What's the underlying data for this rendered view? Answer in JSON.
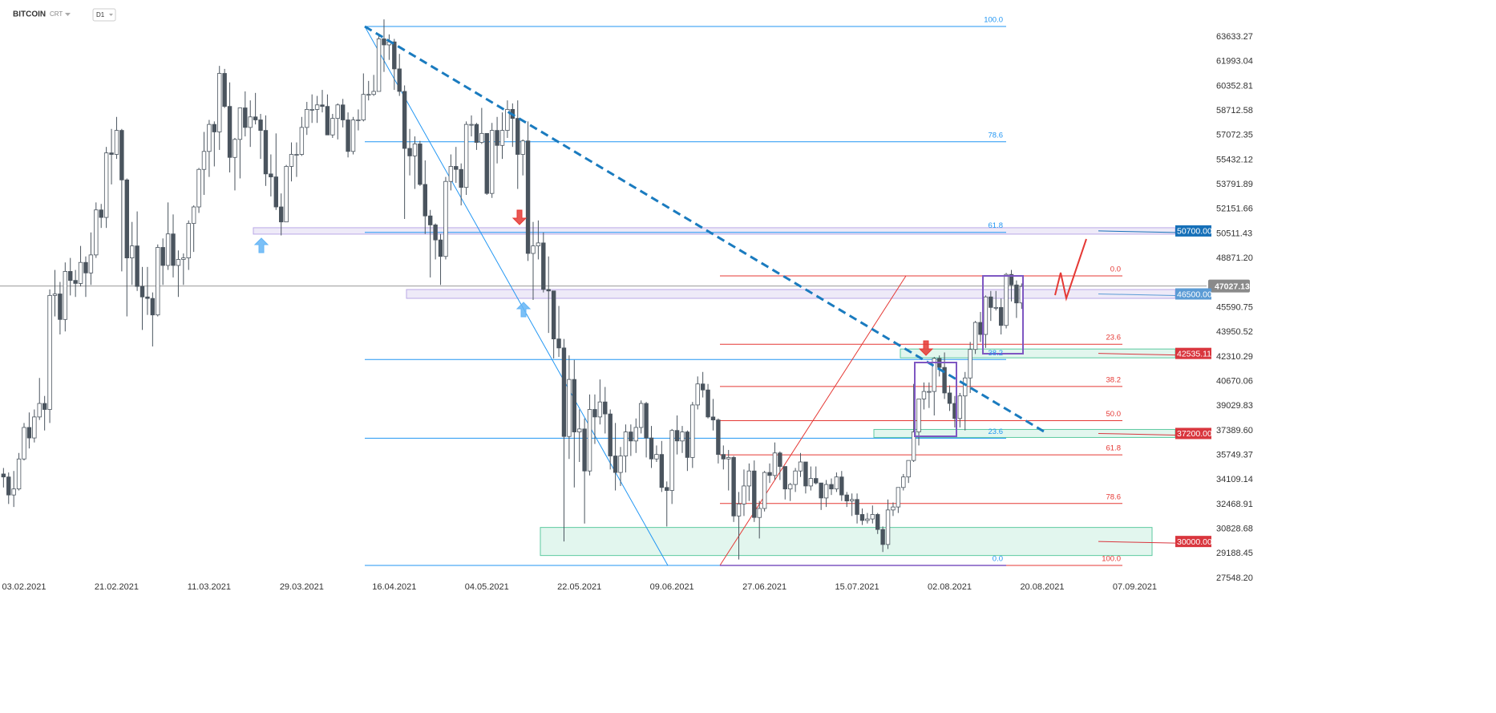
{
  "header": {
    "title": "BITCOIN",
    "subtitle": "CRT",
    "timeframe": "D1"
  },
  "chart_data": {
    "type": "candlestick",
    "xticks": [
      "03.02.2021",
      "21.02.2021",
      "11.03.2021",
      "29.03.2021",
      "16.04.2021",
      "04.05.2021",
      "22.05.2021",
      "09.06.2021",
      "27.06.2021",
      "15.07.2021",
      "02.08.2021",
      "20.08.2021",
      "07.09.2021"
    ],
    "ylim": [
      27548.2,
      63633.27
    ],
    "yticks": [
      63633.27,
      61993.04,
      60352.81,
      58712.58,
      57072.35,
      55432.12,
      53791.89,
      52151.66,
      50511.43,
      {
        "value": 48871.2,
        "label": "48871.20"
      },
      45590.75,
      43950.52,
      42310.29,
      40670.06,
      39029.83,
      {
        "value": 37389.6,
        "label": "37389.60"
      },
      35749.37,
      34109.14,
      32468.91,
      30828.68,
      29188.45,
      {
        "value": 27548.2,
        "label": "27548.20"
      }
    ],
    "price": {
      "value": 47027.13,
      "label": "47027.13"
    },
    "levels": [
      {
        "value": 50700,
        "label": "50700.00",
        "color": "#1670b8"
      },
      {
        "value": 46500,
        "label": "46500.00",
        "color": "#5b9bd5"
      },
      {
        "value": 42535.11,
        "label": "42535.11",
        "color": "#d9363e"
      },
      {
        "value": 37200,
        "label": "37200.00",
        "color": "#d9363e"
      },
      {
        "value": 30000,
        "label": "30000.00",
        "color": "#d9363e"
      }
    ],
    "fib_blue": {
      "color": "#2196f3",
      "levels": [
        {
          "value": 100,
          "label": "100.0"
        },
        {
          "value": 78.6,
          "label": "78.6"
        },
        {
          "value": 61.8,
          "label": "61.8"
        },
        {
          "value": 38.2,
          "label": "38.2"
        },
        {
          "value": 23.6,
          "label": "23.6"
        },
        {
          "value": 0,
          "label": "0.0"
        }
      ]
    },
    "fib_red": {
      "color": "#e53935",
      "levels": [
        {
          "value": 0,
          "label": "0.0"
        },
        {
          "value": 23.6,
          "label": "23.6"
        },
        {
          "value": 38.2,
          "label": "38.2"
        },
        {
          "value": 50,
          "label": "50.0"
        },
        {
          "value": 61.8,
          "label": "61.8"
        },
        {
          "value": 78.6,
          "label": "78.6"
        },
        {
          "value": 100,
          "label": "100.0"
        }
      ]
    },
    "candles": [
      [
        34500,
        34900,
        33600,
        34300
      ],
      [
        34300,
        34600,
        32500,
        33100
      ],
      [
        33100,
        34700,
        32300,
        33500
      ],
      [
        33500,
        35900,
        33400,
        35500
      ],
      [
        35500,
        37900,
        35400,
        37600
      ],
      [
        37600,
        38600,
        36200,
        36900
      ],
      [
        36900,
        38800,
        36600,
        38300
      ],
      [
        38300,
        40900,
        38100,
        39200
      ],
      [
        39200,
        39700,
        37400,
        38800
      ],
      [
        38800,
        46800,
        37900,
        46400
      ],
      [
        46400,
        48100,
        45000,
        46500
      ],
      [
        46500,
        47300,
        43800,
        44800
      ],
      [
        44800,
        48600,
        44000,
        48000
      ],
      [
        48000,
        48900,
        46400,
        47400
      ],
      [
        47400,
        48100,
        46300,
        47200
      ],
      [
        47200,
        49700,
        47000,
        48600
      ],
      [
        48600,
        49000,
        46300,
        47900
      ],
      [
        47900,
        50600,
        47100,
        49100
      ],
      [
        49100,
        52600,
        48900,
        52100
      ],
      [
        52100,
        52500,
        50900,
        51600
      ],
      [
        51600,
        56300,
        50900,
        55900
      ],
      [
        55900,
        57500,
        53800,
        55800
      ],
      [
        55800,
        58300,
        55500,
        57400
      ],
      [
        57400,
        57500,
        48000,
        54100
      ],
      [
        54100,
        54200,
        45000,
        48900
      ],
      [
        48900,
        51300,
        47100,
        49700
      ],
      [
        49700,
        52000,
        46700,
        47000
      ],
      [
        47000,
        48300,
        44100,
        46300
      ],
      [
        46300,
        48300,
        45100,
        46200
      ],
      [
        46200,
        46600,
        43000,
        45100
      ],
      [
        45100,
        49800,
        45000,
        49600
      ],
      [
        49600,
        50200,
        47100,
        48400
      ],
      [
        48400,
        52600,
        48100,
        50500
      ],
      [
        50500,
        51800,
        47600,
        48400
      ],
      [
        48400,
        49400,
        46300,
        48800
      ],
      [
        48800,
        49200,
        47100,
        48900
      ],
      [
        48900,
        51400,
        48100,
        51200
      ],
      [
        51200,
        52400,
        49300,
        52300
      ],
      [
        52300,
        54900,
        51900,
        54800
      ],
      [
        54800,
        57300,
        53100,
        56000
      ],
      [
        56000,
        58100,
        54300,
        57800
      ],
      [
        57800,
        58000,
        55000,
        57300
      ],
      [
        57300,
        61700,
        56100,
        61200
      ],
      [
        61200,
        61500,
        58900,
        59000
      ],
      [
        59000,
        60600,
        54600,
        55600
      ],
      [
        55600,
        56900,
        53400,
        56800
      ],
      [
        56800,
        58900,
        54200,
        58900
      ],
      [
        58900,
        60000,
        57000,
        57600
      ],
      [
        57600,
        59400,
        56300,
        58300
      ],
      [
        58300,
        59900,
        57800,
        58100
      ],
      [
        58100,
        58500,
        55500,
        57400
      ],
      [
        57400,
        58400,
        53700,
        54500
      ],
      [
        54500,
        55800,
        53000,
        54300
      ],
      [
        54300,
        57200,
        52100,
        52300
      ],
      [
        52300,
        53200,
        50400,
        51300
      ],
      [
        51300,
        55100,
        51300,
        55000
      ],
      [
        55000,
        56600,
        54000,
        55800
      ],
      [
        55800,
        56600,
        54300,
        55800
      ],
      [
        55800,
        58300,
        55700,
        57600
      ],
      [
        57600,
        59300,
        57100,
        58800
      ],
      [
        58800,
        59800,
        57900,
        58800
      ],
      [
        58800,
        59700,
        57900,
        59100
      ],
      [
        59100,
        60100,
        58600,
        59000
      ],
      [
        59000,
        59800,
        57100,
        57100
      ],
      [
        57100,
        58500,
        56900,
        58200
      ],
      [
        58200,
        59200,
        56800,
        59100
      ],
      [
        59100,
        59500,
        57600,
        58100
      ],
      [
        58100,
        58600,
        55600,
        56000
      ],
      [
        56000,
        58300,
        55800,
        58100
      ],
      [
        58100,
        58800,
        57400,
        58100
      ],
      [
        58100,
        61200,
        58000,
        59800
      ],
      [
        59800,
        60700,
        59400,
        59800
      ],
      [
        59800,
        61100,
        59700,
        60000
      ],
      [
        60000,
        63700,
        60000,
        63500
      ],
      [
        63500,
        64800,
        61300,
        63100
      ],
      [
        63100,
        63800,
        62100,
        63300
      ],
      [
        63300,
        63500,
        60100,
        61500
      ],
      [
        61500,
        62500,
        59700,
        60000
      ],
      [
        60000,
        60400,
        51500,
        56200
      ],
      [
        56200,
        57500,
        54400,
        55700
      ],
      [
        55700,
        57000,
        53500,
        56500
      ],
      [
        56500,
        56700,
        53700,
        53800
      ],
      [
        53800,
        55400,
        50500,
        51700
      ],
      [
        51700,
        52100,
        47600,
        51100
      ],
      [
        51100,
        51200,
        48800,
        50100
      ],
      [
        50100,
        50500,
        47100,
        49000
      ],
      [
        49000,
        54300,
        48800,
        54000
      ],
      [
        54000,
        55800,
        53400,
        55000
      ],
      [
        55000,
        56300,
        53900,
        54800
      ],
      [
        54800,
        55200,
        52400,
        53600
      ],
      [
        53600,
        58000,
        53100,
        57800
      ],
      [
        57800,
        58400,
        57000,
        57800
      ],
      [
        57800,
        57900,
        56100,
        56600
      ],
      [
        56600,
        58900,
        56500,
        57200
      ],
      [
        57200,
        57200,
        53100,
        53200
      ],
      [
        53200,
        57900,
        52900,
        57400
      ],
      [
        57400,
        58300,
        55200,
        56400
      ],
      [
        56400,
        58600,
        55500,
        57400
      ],
      [
        57400,
        59400,
        56900,
        58800
      ],
      [
        58800,
        59200,
        56300,
        58200
      ],
      [
        58200,
        59400,
        53500,
        55800
      ],
      [
        55800,
        56800,
        54400,
        56700
      ],
      [
        56700,
        58000,
        48700,
        49200
      ],
      [
        49200,
        51300,
        46100,
        49700
      ],
      [
        49700,
        51400,
        48800,
        49900
      ],
      [
        49900,
        50600,
        46600,
        46800
      ],
      [
        46800,
        49000,
        43900,
        46700
      ],
      [
        46700,
        46700,
        42200,
        43500
      ],
      [
        43500,
        45700,
        42300,
        42900
      ],
      [
        42900,
        43500,
        30000,
        37000
      ],
      [
        37000,
        42400,
        35500,
        40800
      ],
      [
        40800,
        42100,
        33600,
        37300
      ],
      [
        37300,
        38800,
        35300,
        37500
      ],
      [
        37500,
        38200,
        31200,
        34700
      ],
      [
        34700,
        39800,
        34400,
        38800
      ],
      [
        38800,
        39800,
        36500,
        38300
      ],
      [
        38300,
        40800,
        37800,
        39300
      ],
      [
        39300,
        40300,
        37200,
        38500
      ],
      [
        38500,
        38800,
        34800,
        35700
      ],
      [
        35700,
        37900,
        33400,
        34600
      ],
      [
        34600,
        36300,
        33700,
        35700
      ],
      [
        35700,
        37800,
        34600,
        37300
      ],
      [
        37300,
        37800,
        35700,
        36700
      ],
      [
        36700,
        38200,
        35900,
        37600
      ],
      [
        37600,
        39400,
        37200,
        39200
      ],
      [
        39200,
        39300,
        35600,
        36900
      ],
      [
        36900,
        37700,
        34900,
        35500
      ],
      [
        35500,
        36400,
        35300,
        35800
      ],
      [
        35800,
        36700,
        33300,
        33600
      ],
      [
        33600,
        34000,
        31000,
        33400
      ],
      [
        33400,
        37500,
        32500,
        37400
      ],
      [
        37400,
        38400,
        35800,
        36700
      ],
      [
        36700,
        37700,
        35900,
        37300
      ],
      [
        37300,
        37400,
        34700,
        35600
      ],
      [
        35600,
        39300,
        34900,
        39100
      ],
      [
        39100,
        41000,
        38800,
        40500
      ],
      [
        40500,
        41300,
        39600,
        40100
      ],
      [
        40100,
        40500,
        38200,
        38300
      ],
      [
        38300,
        39500,
        37400,
        38100
      ],
      [
        38100,
        38200,
        35200,
        35800
      ],
      [
        35800,
        36400,
        34800,
        35500
      ],
      [
        35500,
        36100,
        33400,
        35600
      ],
      [
        35600,
        35700,
        31300,
        31700
      ],
      [
        31700,
        33300,
        28800,
        32500
      ],
      [
        32500,
        34800,
        31700,
        33700
      ],
      [
        33700,
        35200,
        32700,
        34700
      ],
      [
        34700,
        35400,
        31300,
        31600
      ],
      [
        31600,
        32700,
        30200,
        32200
      ],
      [
        32200,
        34700,
        32000,
        34600
      ],
      [
        34600,
        35200,
        33900,
        34400
      ],
      [
        34400,
        36600,
        34100,
        35900
      ],
      [
        35900,
        36000,
        34100,
        35000
      ],
      [
        35000,
        35000,
        32800,
        33500
      ],
      [
        33500,
        33900,
        32700,
        33800
      ],
      [
        33800,
        34900,
        33300,
        34700
      ],
      [
        34700,
        35900,
        34300,
        35300
      ],
      [
        35300,
        35300,
        33200,
        33700
      ],
      [
        33700,
        35000,
        33400,
        34200
      ],
      [
        34200,
        35000,
        33800,
        33900
      ],
      [
        33900,
        33900,
        32100,
        32900
      ],
      [
        32900,
        34100,
        32300,
        33800
      ],
      [
        33800,
        34200,
        33100,
        33500
      ],
      [
        33500,
        34600,
        33300,
        34300
      ],
      [
        34300,
        34700,
        32700,
        33100
      ],
      [
        33100,
        33300,
        32300,
        32700
      ],
      [
        32700,
        33200,
        31700,
        32800
      ],
      [
        32800,
        33200,
        31200,
        31800
      ],
      [
        31800,
        32200,
        31100,
        31400
      ],
      [
        31400,
        31900,
        31200,
        31500
      ],
      [
        31500,
        32400,
        31200,
        31800
      ],
      [
        31800,
        31900,
        30500,
        30800
      ],
      [
        30800,
        31000,
        29300,
        29800
      ],
      [
        29800,
        32800,
        29500,
        32100
      ],
      [
        32100,
        32600,
        31700,
        32300
      ],
      [
        32300,
        33600,
        31900,
        33600
      ],
      [
        33600,
        34500,
        33400,
        34300
      ],
      [
        34300,
        35400,
        33900,
        35400
      ],
      [
        35400,
        40500,
        35300,
        37300
      ],
      [
        37300,
        39500,
        36400,
        39500
      ],
      [
        39500,
        40600,
        38800,
        40000
      ],
      [
        40000,
        40600,
        38900,
        40000
      ],
      [
        40000,
        42300,
        38400,
        42200
      ],
      [
        42200,
        42400,
        41000,
        41600
      ],
      [
        41600,
        42600,
        39500,
        39900
      ],
      [
        39900,
        40400,
        38700,
        39200
      ],
      [
        39200,
        39700,
        37600,
        38200
      ],
      [
        38200,
        39900,
        37600,
        39700
      ],
      [
        39700,
        41300,
        37400,
        40900
      ],
      [
        40900,
        43300,
        39900,
        42800
      ],
      [
        42800,
        44700,
        42500,
        44600
      ],
      [
        44600,
        45300,
        43300,
        43800
      ],
      [
        43800,
        46400,
        42900,
        46300
      ],
      [
        46300,
        46700,
        44700,
        45600
      ],
      [
        45600,
        46700,
        45400,
        45600
      ],
      [
        45600,
        46200,
        43800,
        44400
      ],
      [
        44400,
        47900,
        44200,
        47800
      ],
      [
        47800,
        48100,
        46000,
        47100
      ],
      [
        47100,
        47400,
        44900,
        45900
      ],
      [
        45900,
        47200,
        45500,
        47000
      ]
    ]
  }
}
